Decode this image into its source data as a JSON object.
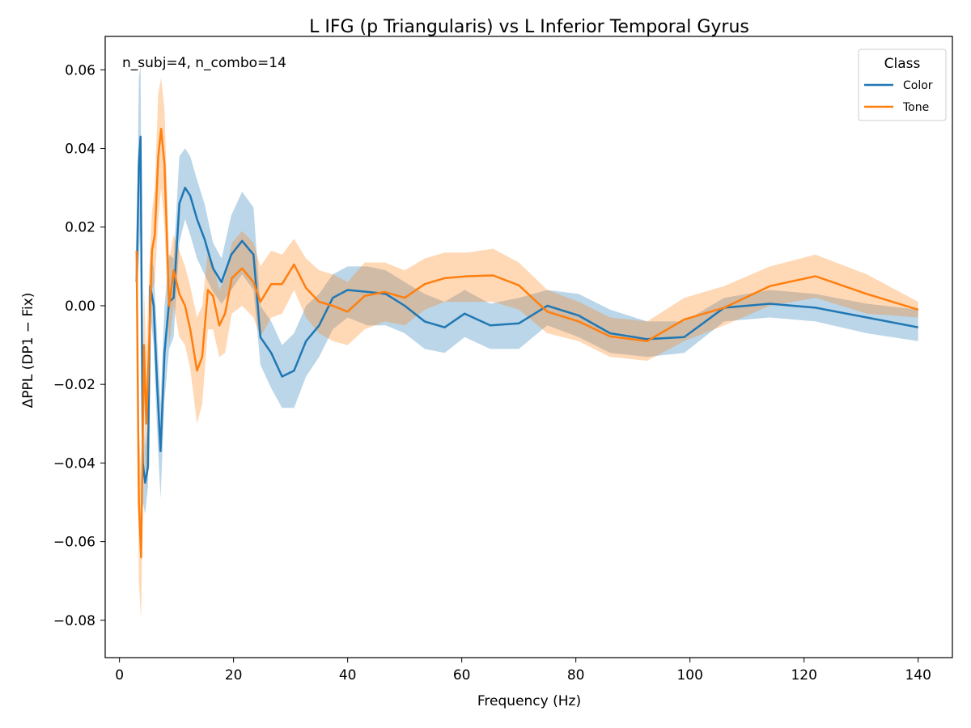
{
  "chart_data": {
    "type": "line",
    "title": "L IFG (p Triangularis) vs L Inferior Temporal Gyrus",
    "xlabel": "Frequency (Hz)",
    "ylabel": "ΔPPL (DP1 − Fix)",
    "annotation": "n_subj=4, n_combo=14",
    "xlim": [
      -2.5,
      146
    ],
    "ylim": [
      -0.0895,
      0.0685
    ],
    "xticks": [
      0,
      20,
      40,
      60,
      80,
      100,
      120,
      140
    ],
    "xtick_labels": [
      "0",
      "20",
      "40",
      "60",
      "80",
      "100",
      "120",
      "140"
    ],
    "yticks": [
      -0.08,
      -0.06,
      -0.04,
      -0.02,
      0.0,
      0.02,
      0.04,
      0.06
    ],
    "ytick_labels": [
      "−0.08",
      "−0.06",
      "−0.04",
      "−0.02",
      "0.00",
      "0.02",
      "0.04",
      "0.06"
    ],
    "grid": false,
    "legend": {
      "title": "Class",
      "placement": "upper right"
    },
    "colors": {
      "Color": "#1f77b4",
      "Tone": "#ff7f0e"
    },
    "series": [
      {
        "name": "Color",
        "x": [
          3.0,
          3.4,
          3.7,
          4.1,
          4.5,
          5.0,
          5.4,
          6.0,
          6.6,
          7.2,
          7.9,
          8.7,
          9.5,
          10.5,
          11.5,
          12.4,
          13.6,
          14.9,
          16.4,
          17.9,
          19.6,
          21.5,
          23.5,
          24.7,
          26.6,
          28.5,
          30.6,
          32.7,
          35.0,
          37.4,
          40.0,
          43.5,
          46.7,
          50.0,
          53.5,
          57.0,
          60.5,
          65.0,
          70.0,
          75.0,
          80.5,
          86.0,
          92.5,
          99.0,
          106.0,
          114.0,
          122.0,
          131.0,
          140.0
        ],
        "y": [
          0.006,
          0.036,
          0.043,
          -0.04,
          -0.045,
          -0.041,
          0.005,
          0.0,
          -0.02,
          -0.037,
          -0.012,
          0.001,
          0.002,
          0.026,
          0.03,
          0.028,
          0.022,
          0.017,
          0.0095,
          0.006,
          0.013,
          0.0165,
          0.013,
          -0.008,
          -0.012,
          -0.018,
          -0.0165,
          -0.009,
          -0.005,
          0.002,
          0.004,
          0.0035,
          0.003,
          0.0,
          -0.004,
          -0.0055,
          -0.002,
          -0.005,
          -0.0045,
          0.0,
          -0.0025,
          -0.007,
          -0.0085,
          -0.008,
          -0.0005,
          0.0005,
          -0.0005,
          -0.003,
          -0.0055
        ],
        "lower": [
          0.0,
          0.012,
          0.02,
          -0.05,
          -0.053,
          -0.046,
          -0.002,
          -0.01,
          -0.032,
          -0.049,
          -0.024,
          -0.011,
          -0.008,
          0.016,
          0.022,
          0.018,
          0.012,
          0.008,
          0.0035,
          0.0005,
          0.004,
          0.008,
          0.004,
          -0.015,
          -0.021,
          -0.026,
          -0.026,
          -0.018,
          -0.013,
          -0.006,
          -0.003,
          -0.005,
          -0.005,
          -0.007,
          -0.011,
          -0.012,
          -0.008,
          -0.011,
          -0.011,
          -0.005,
          -0.008,
          -0.012,
          -0.013,
          -0.012,
          -0.004,
          -0.003,
          -0.004,
          -0.007,
          -0.009
        ],
        "upper": [
          0.012,
          0.058,
          0.061,
          -0.025,
          -0.036,
          -0.03,
          0.012,
          0.01,
          -0.008,
          -0.025,
          0.0,
          0.013,
          0.012,
          0.038,
          0.04,
          0.038,
          0.032,
          0.026,
          0.016,
          0.012,
          0.023,
          0.029,
          0.025,
          0.0,
          -0.004,
          -0.01,
          -0.007,
          0.0,
          0.003,
          0.008,
          0.01,
          0.01,
          0.009,
          0.006,
          0.003,
          0.001,
          0.004,
          0.0005,
          0.002,
          0.004,
          0.003,
          -0.001,
          -0.004,
          -0.004,
          0.002,
          0.004,
          0.003,
          0.0005,
          -0.001
        ]
      },
      {
        "name": "Tone",
        "x": [
          3.0,
          3.4,
          3.8,
          4.3,
          4.7,
          5.2,
          5.7,
          6.2,
          6.8,
          7.3,
          7.9,
          8.7,
          9.5,
          10.5,
          11.5,
          12.4,
          13.6,
          14.5,
          15.5,
          16.4,
          17.5,
          18.5,
          19.7,
          21.5,
          23.5,
          24.7,
          26.6,
          28.5,
          30.6,
          32.7,
          35.0,
          37.4,
          40.0,
          43.0,
          46.5,
          50.0,
          53.5,
          57.0,
          61.0,
          65.5,
          70.0,
          75.0,
          80.5,
          86.0,
          92.5,
          99.0,
          106.0,
          114.0,
          122.0,
          131.0,
          140.0
        ],
        "y": [
          0.014,
          -0.05,
          -0.064,
          -0.01,
          -0.03,
          -0.01,
          0.014,
          0.018,
          0.038,
          0.045,
          0.036,
          0.0,
          0.009,
          0.003,
          0.0,
          -0.006,
          -0.0165,
          -0.013,
          0.004,
          0.0025,
          -0.005,
          -0.002,
          0.007,
          0.0095,
          0.006,
          0.001,
          0.0055,
          0.0055,
          0.0105,
          0.0045,
          0.001,
          0.0,
          -0.0015,
          0.0025,
          0.0035,
          0.002,
          0.0055,
          0.007,
          0.0075,
          0.0077,
          0.0052,
          -0.0015,
          -0.004,
          -0.0078,
          -0.009,
          -0.0035,
          -0.0005,
          0.005,
          0.0075,
          0.003,
          -0.001
        ],
        "lower": [
          0.006,
          -0.07,
          -0.08,
          -0.025,
          -0.048,
          -0.028,
          0.004,
          0.006,
          0.022,
          0.03,
          0.02,
          -0.01,
          0.0,
          -0.008,
          -0.01,
          -0.016,
          -0.03,
          -0.025,
          -0.006,
          -0.006,
          -0.013,
          -0.012,
          -0.002,
          0.0,
          -0.003,
          -0.008,
          -0.003,
          -0.002,
          0.004,
          -0.003,
          -0.007,
          -0.009,
          -0.01,
          -0.006,
          -0.004,
          -0.005,
          -0.001,
          0.001,
          0.001,
          0.001,
          -0.001,
          -0.007,
          -0.009,
          -0.013,
          -0.014,
          -0.009,
          -0.005,
          0.0,
          0.002,
          -0.002,
          -0.003
        ],
        "upper": [
          0.022,
          -0.03,
          -0.045,
          0.005,
          -0.012,
          0.008,
          0.024,
          0.03,
          0.054,
          0.058,
          0.05,
          0.012,
          0.018,
          0.014,
          0.01,
          0.005,
          -0.003,
          0.0,
          0.014,
          0.011,
          0.004,
          0.007,
          0.016,
          0.019,
          0.016,
          0.01,
          0.014,
          0.013,
          0.017,
          0.012,
          0.009,
          0.008,
          0.006,
          0.011,
          0.011,
          0.009,
          0.012,
          0.0135,
          0.0135,
          0.0145,
          0.011,
          0.004,
          0.001,
          -0.003,
          -0.004,
          0.002,
          0.005,
          0.01,
          0.013,
          0.008,
          0.001
        ]
      }
    ]
  }
}
